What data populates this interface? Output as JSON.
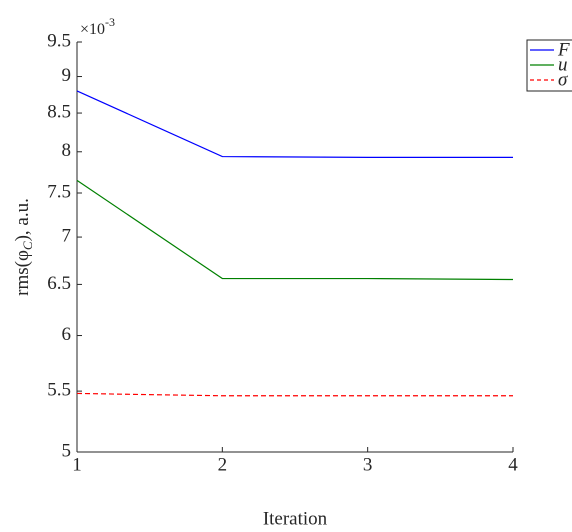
{
  "chart_data": {
    "type": "line",
    "xlabel": "Iteration",
    "ylabel": {
      "before": "rms(φ",
      "sub": "C",
      "after": "), a.u."
    },
    "y_multiplier": {
      "base": "×10",
      "exponent": "-3"
    },
    "x": [
      1,
      2,
      3,
      4
    ],
    "xlim": [
      1,
      4
    ],
    "xticks": [
      1,
      2,
      3,
      4
    ],
    "ylim": [
      5,
      9.5
    ],
    "yticks": [
      5,
      5.5,
      6,
      6.5,
      7,
      7.5,
      8,
      8.5,
      9,
      9.5
    ],
    "yscale": "log",
    "legend": "top-right-outside",
    "series": [
      {
        "name": "F",
        "color": "#0000ff",
        "dashed": false,
        "values": [
          8.8,
          7.94,
          7.93,
          7.93
        ]
      },
      {
        "name": "u",
        "color": "#008000",
        "dashed": false,
        "values": [
          7.65,
          6.56,
          6.56,
          6.55
        ]
      },
      {
        "name": "σ",
        "color": "#ff0000",
        "dashed": true,
        "values": [
          5.48,
          5.46,
          5.46,
          5.46
        ]
      }
    ]
  }
}
